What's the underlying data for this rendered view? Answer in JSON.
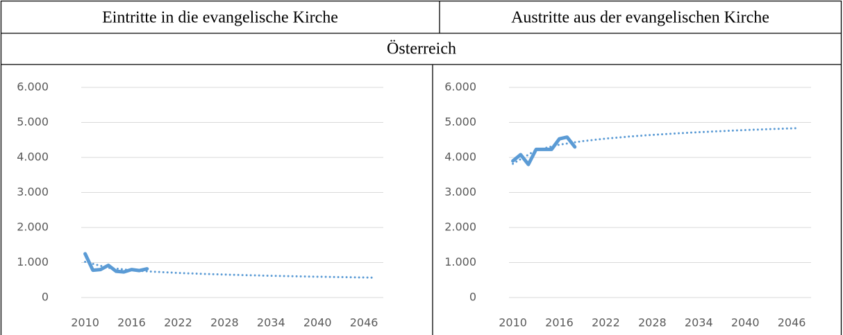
{
  "table": {
    "headers": [
      "Eintritte in die evangelische Kirche",
      "Austritte aus der evangelischen Kirche"
    ],
    "region": "Österreich"
  },
  "chart_data": [
    {
      "type": "line",
      "xlim": [
        2009.5,
        2048.5
      ],
      "xticks": [
        2010,
        2016,
        2022,
        2028,
        2034,
        2040,
        2046
      ],
      "ylim": [
        0,
        6000
      ],
      "yticks": [
        0,
        {
          "value": 1000,
          "label": "1.000"
        },
        {
          "value": 2000,
          "label": "2.000"
        },
        {
          "value": 3000,
          "label": "3.000"
        },
        {
          "value": 4000,
          "label": "4.000"
        },
        {
          "value": 5000,
          "label": "5.000"
        },
        {
          "value": 6000,
          "label": "6.000"
        }
      ],
      "grid": true,
      "series": [
        {
          "color": "#5b9bd5",
          "style": "solid",
          "x": [
            2010,
            2011,
            2012,
            2013,
            2014,
            2015,
            2016,
            2017,
            2018
          ],
          "values": [
            1250,
            780,
            800,
            920,
            750,
            730,
            800,
            770,
            820
          ]
        },
        {
          "color": "#5b9bd5",
          "style": "dotted",
          "x": [
            2010,
            2013,
            2016,
            2019,
            2022,
            2025,
            2028,
            2031,
            2034,
            2037,
            2040,
            2043,
            2046,
            2047
          ],
          "values": [
            1020,
            849,
            779,
            735,
            703,
            677,
            656,
            638,
            622,
            608,
            595,
            584,
            573,
            570
          ]
        }
      ]
    },
    {
      "type": "line",
      "xlim": [
        2009.5,
        2048.5
      ],
      "xticks": [
        2010,
        2016,
        2022,
        2028,
        2034,
        2040,
        2046
      ],
      "ylim": [
        0,
        6000
      ],
      "yticks": [
        0,
        {
          "value": 1000,
          "label": "1.000"
        },
        {
          "value": 2000,
          "label": "2.000"
        },
        {
          "value": 3000,
          "label": "3.000"
        },
        {
          "value": 4000,
          "label": "4.000"
        },
        {
          "value": 5000,
          "label": "5.000"
        },
        {
          "value": 6000,
          "label": "6.000"
        }
      ],
      "grid": true,
      "series": [
        {
          "color": "#5b9bd5",
          "style": "solid",
          "x": [
            2010,
            2011,
            2012,
            2013,
            2014,
            2015,
            2016,
            2017,
            2018
          ],
          "values": [
            3900,
            4080,
            3800,
            4230,
            4230,
            4230,
            4530,
            4580,
            4300
          ]
        },
        {
          "color": "#5b9bd5",
          "style": "dotted",
          "x": [
            2010,
            2013,
            2016,
            2019,
            2022,
            2025,
            2028,
            2031,
            2034,
            2037,
            2040,
            2043,
            2046,
            2047
          ],
          "values": [
            3820,
            4208,
            4365,
            4465,
            4538,
            4596,
            4644,
            4685,
            4721,
            4753,
            4782,
            4807,
            4831,
            4839
          ]
        }
      ]
    }
  ]
}
